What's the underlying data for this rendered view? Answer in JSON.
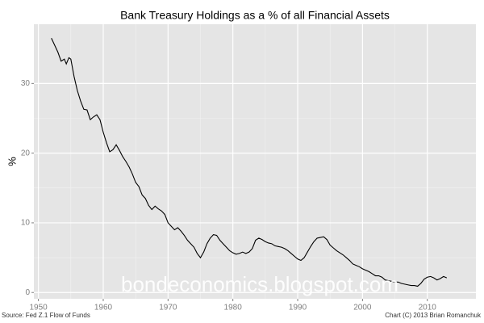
{
  "chart_data": {
    "type": "line",
    "title": "Bank Treasury Holdings as a % of all Financial Assets",
    "y_label": "%",
    "source": "Source: Fed Z.1 Flow of Funds",
    "credit": "Chart (C) 2013 Brian Romanchuk",
    "watermark": "bondeconomics.blogspot.com",
    "grid": true,
    "xlim": [
      1949.3,
      2017.5
    ],
    "xticks": [
      1950,
      1960,
      1970,
      1980,
      1990,
      2000,
      2010
    ],
    "ylim": [
      -0.9,
      38.5
    ],
    "yticks": [
      0,
      10,
      20,
      30
    ],
    "series": [
      {
        "name": "Bank Treasury Holdings",
        "color": "#000000",
        "x": [
          1952,
          1953,
          1953.5,
          1954,
          1954.3,
          1954.7,
          1955,
          1955.5,
          1956,
          1956.5,
          1957,
          1957.5,
          1958,
          1958.5,
          1959,
          1959.5,
          1960,
          1960.5,
          1961,
          1961.5,
          1962,
          1962.5,
          1963,
          1963.5,
          1964,
          1964.5,
          1965,
          1965.5,
          1966,
          1966.5,
          1967,
          1967.5,
          1968,
          1968.5,
          1969,
          1969.5,
          1970,
          1970.5,
          1971,
          1971.5,
          1972,
          1972.5,
          1973,
          1973.5,
          1974,
          1974.5,
          1975,
          1975.5,
          1976,
          1976.5,
          1977,
          1977.5,
          1978,
          1978.5,
          1979,
          1979.5,
          1980,
          1980.5,
          1981,
          1981.5,
          1982,
          1982.5,
          1983,
          1983.5,
          1984,
          1984.5,
          1985,
          1985.5,
          1986,
          1986.5,
          1987,
          1987.5,
          1988,
          1988.5,
          1989,
          1989.5,
          1990,
          1990.5,
          1991,
          1991.5,
          1992,
          1992.5,
          1993,
          1993.5,
          1994,
          1994.5,
          1995,
          1995.5,
          1996,
          1996.5,
          1997,
          1997.5,
          1998,
          1998.5,
          1999,
          1999.5,
          2000,
          2000.5,
          2001,
          2001.5,
          2002,
          2002.5,
          2003,
          2003.5,
          2004,
          2004.5,
          2005,
          2005.5,
          2006,
          2006.5,
          2007,
          2007.5,
          2008,
          2008.5,
          2009,
          2009.5,
          2010,
          2010.5,
          2011,
          2011.5,
          2012,
          2012.5,
          2013
        ],
        "values": [
          36.5,
          34.5,
          33.2,
          33.5,
          32.8,
          33.7,
          33.5,
          31,
          29,
          27.5,
          26.3,
          26.2,
          24.8,
          25.2,
          25.5,
          24.8,
          23,
          21.5,
          20.2,
          20.5,
          21.2,
          20.4,
          19.5,
          18.8,
          18,
          17,
          15.8,
          15.2,
          14,
          13.5,
          12.5,
          11.9,
          12.4,
          12,
          11.7,
          11.2,
          10,
          9.5,
          9,
          9.3,
          8.8,
          8.2,
          7.5,
          7,
          6.5,
          5.6,
          5,
          5.8,
          7,
          7.8,
          8.3,
          8.2,
          7.5,
          7,
          6.5,
          6,
          5.7,
          5.5,
          5.6,
          5.8,
          5.6,
          5.8,
          6.3,
          7.5,
          7.8,
          7.6,
          7.3,
          7.1,
          7,
          6.7,
          6.6,
          6.5,
          6.3,
          6,
          5.6,
          5.2,
          4.8,
          4.6,
          5,
          5.8,
          6.6,
          7.3,
          7.8,
          7.9,
          8,
          7.6,
          6.8,
          6.4,
          6,
          5.7,
          5.4,
          5,
          4.6,
          4.1,
          3.9,
          3.7,
          3.4,
          3.2,
          3,
          2.7,
          2.4,
          2.4,
          2.2,
          1.8,
          1.7,
          1.6,
          1.5,
          1.5,
          1.3,
          1.2,
          1.1,
          1,
          1,
          0.9,
          1.3,
          1.9,
          2.2,
          2.3,
          2.1,
          1.8,
          2,
          2.3,
          2.1
        ]
      }
    ]
  }
}
